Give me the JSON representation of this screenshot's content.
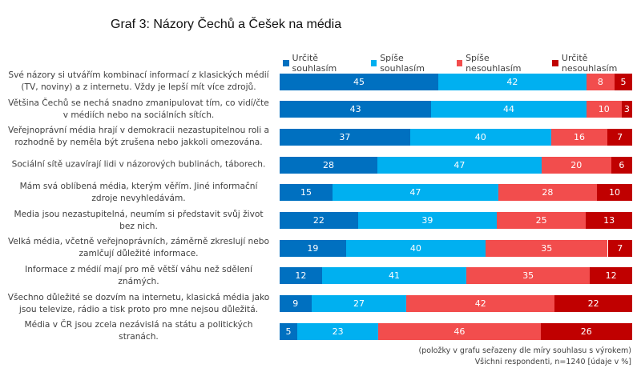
{
  "chart_data": {
    "type": "bar",
    "orientation": "horizontal",
    "stacked": true,
    "title": "Graf 3: Názory Čechů a Češek na média",
    "legend_position": "top",
    "series": [
      {
        "name": "Určitě souhlasím",
        "color": "#0070C0",
        "values": [
          45,
          43,
          37,
          28,
          15,
          22,
          19,
          12,
          9,
          5
        ]
      },
      {
        "name": "Spíše souhlasím",
        "color": "#00B0F0",
        "values": [
          42,
          44,
          40,
          47,
          47,
          39,
          40,
          41,
          27,
          23
        ]
      },
      {
        "name": "Spíše nesouhlasím",
        "color": "#F24D4D",
        "values": [
          8,
          10,
          16,
          20,
          28,
          25,
          35,
          35,
          42,
          46
        ]
      },
      {
        "name": "Určitě nesouhlasím",
        "color": "#C00000",
        "values": [
          5,
          3,
          7,
          6,
          10,
          13,
          7,
          12,
          22,
          26
        ]
      }
    ],
    "categories": [
      "Své názory si utvářím kombinací informací z klasických médií (TV, noviny) a z internetu. Vždy je lepší mít více zdrojů.",
      "Většina Čechů se nechá snadno zmanipulovat tím, co vidí/čte v médiích nebo na sociálních sítích.",
      "Veřejnoprávní média hrají v demokracii nezastupitelnou roli a rozhodně by neměla být zrušena nebo jakkoli omezována.",
      "Sociální sítě uzavírají lidi v názorových bublinách, táborech.",
      "Mám svá oblíbená média, kterým věřím. Jiné informační zdroje nevyhledávám.",
      "Media jsou nezastupitelná, neumím si představit svůj život bez nich.",
      "Velká média, včetně veřejnoprávních, záměrně zkreslují nebo zamlčují důležité informace.",
      "Informace z médií mají pro mě větší váhu než sdělení známých.",
      "Všechno důležité se dozvím na internetu, klasická média jako jsou televize, rádio a tisk proto pro mne nejsou důležitá.",
      "Média v ČR jsou zcela nezávislá na státu a politických stranách."
    ],
    "notes": [
      "(položky v grafu seřazeny dle míry souhlasu s výrokem)",
      "Všichni respondenti, n=1240 [údaje v %]"
    ]
  }
}
